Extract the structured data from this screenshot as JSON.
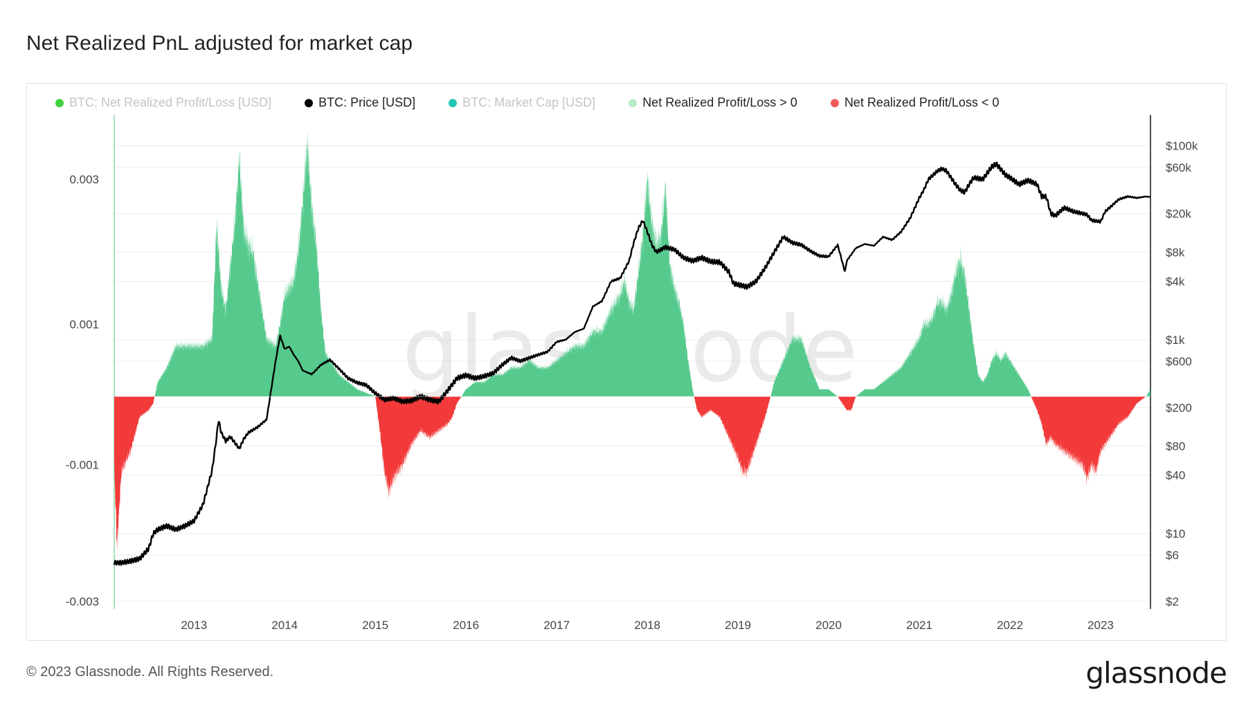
{
  "title": "Net Realized PnL adjusted for market cap",
  "footer": {
    "copyright": "© 2023 Glassnode. All Rights Reserved.",
    "logo": "glassnode"
  },
  "watermark": "glassnode",
  "legend": [
    {
      "label": "BTC: Net Realized Profit/Loss [USD]",
      "color": "#3ecf3e",
      "active": false
    },
    {
      "label": "BTC: Price [USD]",
      "color": "#000000",
      "active": true
    },
    {
      "label": "BTC: Market Cap [USD]",
      "color": "#26c6b5",
      "active": false
    },
    {
      "label": "Net Realized Profit/Loss > 0",
      "color": "#b6ecc9",
      "active": true
    },
    {
      "label": "Net Realized Profit/Loss < 0",
      "color": "#f25b5b",
      "active": true
    }
  ],
  "chart_data": {
    "type": "area+line",
    "title": "Net Realized PnL adjusted for market cap",
    "x_ticks": [
      "2013",
      "2014",
      "2015",
      "2016",
      "2017",
      "2018",
      "2019",
      "2020",
      "2021",
      "2022",
      "2023"
    ],
    "x_range": [
      2012.12,
      2023.55
    ],
    "left_axis": {
      "ticks": [
        "0.003",
        "0.001",
        "-0.001",
        "-0.003"
      ],
      "tick_values": [
        0.003,
        0.001,
        -0.001,
        -0.003
      ],
      "range": [
        -0.003,
        0.004
      ]
    },
    "right_axis": {
      "scale": "log",
      "ticks": [
        "$100k",
        "$60k",
        "$20k",
        "$8k",
        "$4k",
        "$1k",
        "$600",
        "$200",
        "$80",
        "$40",
        "$10",
        "$6",
        "$2"
      ],
      "tick_values": [
        100000,
        60000,
        20000,
        8000,
        4000,
        1000,
        600,
        200,
        80,
        40,
        10,
        6,
        2
      ],
      "range": [
        2,
        150000
      ]
    },
    "colors": {
      "positive": "#4dc787",
      "negative": "#f23a3a",
      "price": "#000000"
    },
    "pnl_series": {
      "name": "Net Realized Profit/Loss (adjusted)",
      "x": [
        2012.12,
        2012.15,
        2012.2,
        2012.3,
        2012.4,
        2012.5,
        2012.55,
        2012.6,
        2012.7,
        2012.8,
        2012.9,
        2013.0,
        2013.1,
        2013.2,
        2013.25,
        2013.3,
        2013.35,
        2013.4,
        2013.45,
        2013.5,
        2013.55,
        2013.6,
        2013.65,
        2013.7,
        2013.8,
        2013.9,
        2013.95,
        2014.0,
        2014.05,
        2014.1,
        2014.15,
        2014.2,
        2014.25,
        2014.3,
        2014.35,
        2014.4,
        2014.45,
        2014.5,
        2014.6,
        2014.7,
        2014.8,
        2014.9,
        2015.0,
        2015.05,
        2015.1,
        2015.15,
        2015.2,
        2015.3,
        2015.4,
        2015.5,
        2015.6,
        2015.7,
        2015.8,
        2015.85,
        2015.9,
        2016.0,
        2016.1,
        2016.2,
        2016.3,
        2016.4,
        2016.5,
        2016.6,
        2016.7,
        2016.8,
        2016.9,
        2017.0,
        2017.1,
        2017.2,
        2017.3,
        2017.4,
        2017.5,
        2017.6,
        2017.7,
        2017.75,
        2017.8,
        2017.85,
        2017.9,
        2017.95,
        2018.0,
        2018.05,
        2018.1,
        2018.15,
        2018.2,
        2018.25,
        2018.3,
        2018.35,
        2018.4,
        2018.45,
        2018.5,
        2018.55,
        2018.6,
        2018.7,
        2018.8,
        2018.9,
        2019.0,
        2019.05,
        2019.1,
        2019.2,
        2019.3,
        2019.4,
        2019.5,
        2019.6,
        2019.7,
        2019.8,
        2019.9,
        2020.0,
        2020.1,
        2020.2,
        2020.25,
        2020.3,
        2020.4,
        2020.5,
        2020.6,
        2020.7,
        2020.8,
        2020.9,
        2021.0,
        2021.05,
        2021.1,
        2021.15,
        2021.2,
        2021.25,
        2021.3,
        2021.35,
        2021.4,
        2021.45,
        2021.5,
        2021.55,
        2021.6,
        2021.65,
        2021.7,
        2021.75,
        2021.8,
        2021.85,
        2021.9,
        2021.95,
        2022.0,
        2022.05,
        2022.1,
        2022.2,
        2022.3,
        2022.35,
        2022.4,
        2022.45,
        2022.5,
        2022.6,
        2022.7,
        2022.8,
        2022.85,
        2022.9,
        2022.95,
        2023.0,
        2023.1,
        2023.2,
        2023.3,
        2023.4,
        2023.5,
        2023.55
      ],
      "y": [
        -0.001,
        -0.0022,
        -0.0011,
        -0.0008,
        -0.0003,
        -0.0002,
        -0.0001,
        0.0002,
        0.0004,
        0.0007,
        0.0007,
        0.0007,
        0.0007,
        0.0008,
        0.0024,
        0.0015,
        0.0012,
        0.0018,
        0.0024,
        0.0033,
        0.0023,
        0.0021,
        0.002,
        0.0016,
        0.0008,
        0.0007,
        0.001,
        0.0014,
        0.0015,
        0.0016,
        0.002,
        0.0027,
        0.0035,
        0.0026,
        0.0021,
        0.0012,
        0.0006,
        0.0005,
        0.0003,
        0.0002,
        0.0001,
        5e-05,
        0.0,
        -0.0005,
        -0.0011,
        -0.0014,
        -0.0012,
        -0.001,
        -0.0007,
        -0.0005,
        -0.0006,
        -0.0005,
        -0.0004,
        -0.0003,
        -0.0001,
        0.0001,
        0.0002,
        0.0002,
        0.0003,
        0.0003,
        0.0004,
        0.0004,
        0.0005,
        0.0004,
        0.0004,
        0.0005,
        0.0006,
        0.0007,
        0.0007,
        0.0009,
        0.0009,
        0.0012,
        0.0014,
        0.0016,
        0.0013,
        0.0012,
        0.0017,
        0.0022,
        0.003,
        0.0024,
        0.0021,
        0.0022,
        0.0029,
        0.0018,
        0.0015,
        0.0013,
        0.001,
        0.0005,
        0.0001,
        -0.0002,
        -0.0003,
        -0.0002,
        -0.0003,
        -0.0006,
        -0.0009,
        -0.0011,
        -0.0011,
        -0.0007,
        -0.0003,
        0.0002,
        0.0005,
        0.0008,
        0.0008,
        0.0004,
        0.0001,
        0.0001,
        0.0,
        -0.0002,
        -0.0002,
        0.0,
        0.0001,
        0.0001,
        0.0002,
        0.0003,
        0.0004,
        0.0006,
        0.0008,
        0.001,
        0.001,
        0.0011,
        0.0013,
        0.0013,
        0.0012,
        0.0014,
        0.0017,
        0.0019,
        0.0017,
        0.0012,
        0.0007,
        0.0003,
        0.0002,
        0.0003,
        0.0005,
        0.0006,
        0.0005,
        0.0006,
        0.0005,
        0.0004,
        0.0003,
        0.0001,
        -0.0002,
        -0.0004,
        -0.0007,
        -0.0006,
        -0.0007,
        -0.0008,
        -0.0009,
        -0.001,
        -0.0012,
        -0.001,
        -0.0011,
        -0.0008,
        -0.0006,
        -0.0004,
        -0.0003,
        -0.0001,
        0.0,
        0.0001
      ]
    },
    "price_series": {
      "name": "BTC: Price [USD]",
      "x": [
        2012.12,
        2012.2,
        2012.3,
        2012.4,
        2012.5,
        2012.55,
        2012.6,
        2012.7,
        2012.8,
        2012.9,
        2013.0,
        2013.1,
        2013.2,
        2013.25,
        2013.27,
        2013.3,
        2013.35,
        2013.4,
        2013.5,
        2013.55,
        2013.6,
        2013.7,
        2013.8,
        2013.85,
        2013.9,
        2013.95,
        2014.0,
        2014.05,
        2014.1,
        2014.15,
        2014.2,
        2014.3,
        2014.4,
        2014.5,
        2014.6,
        2014.7,
        2014.8,
        2014.9,
        2015.0,
        2015.1,
        2015.2,
        2015.3,
        2015.4,
        2015.5,
        2015.6,
        2015.7,
        2015.8,
        2015.9,
        2016.0,
        2016.1,
        2016.2,
        2016.3,
        2016.4,
        2016.5,
        2016.6,
        2016.7,
        2016.8,
        2016.9,
        2017.0,
        2017.1,
        2017.2,
        2017.3,
        2017.4,
        2017.5,
        2017.6,
        2017.7,
        2017.8,
        2017.85,
        2017.9,
        2017.95,
        2018.0,
        2018.05,
        2018.1,
        2018.2,
        2018.3,
        2018.4,
        2018.5,
        2018.6,
        2018.7,
        2018.8,
        2018.9,
        2018.95,
        2019.0,
        2019.1,
        2019.2,
        2019.3,
        2019.4,
        2019.5,
        2019.6,
        2019.7,
        2019.8,
        2019.9,
        2020.0,
        2020.1,
        2020.18,
        2020.2,
        2020.3,
        2020.4,
        2020.5,
        2020.6,
        2020.7,
        2020.8,
        2020.9,
        2021.0,
        2021.05,
        2021.1,
        2021.2,
        2021.25,
        2021.3,
        2021.4,
        2021.45,
        2021.5,
        2021.55,
        2021.6,
        2021.7,
        2021.8,
        2021.85,
        2021.9,
        2021.95,
        2022.0,
        2022.1,
        2022.2,
        2022.3,
        2022.35,
        2022.4,
        2022.45,
        2022.5,
        2022.6,
        2022.7,
        2022.8,
        2022.85,
        2022.9,
        2023.0,
        2023.05,
        2023.1,
        2023.2,
        2023.3,
        2023.4,
        2023.5,
        2023.55
      ],
      "y": [
        5,
        5,
        5.2,
        5.5,
        7,
        10,
        11,
        12,
        11,
        12,
        13.5,
        20,
        45,
        100,
        150,
        110,
        90,
        100,
        75,
        95,
        110,
        125,
        150,
        300,
        600,
        1100,
        800,
        850,
        700,
        600,
        480,
        440,
        550,
        620,
        500,
        400,
        360,
        340,
        280,
        240,
        250,
        230,
        235,
        260,
        240,
        230,
        300,
        400,
        430,
        400,
        420,
        450,
        550,
        650,
        600,
        650,
        700,
        750,
        950,
        1000,
        1200,
        1300,
        2200,
        2500,
        4000,
        4300,
        6500,
        10000,
        14000,
        17000,
        13000,
        9500,
        8000,
        9000,
        8500,
        7000,
        6500,
        7000,
        6400,
        6300,
        5000,
        3800,
        3700,
        3500,
        4000,
        5500,
        8000,
        11500,
        10000,
        9500,
        8200,
        7300,
        7200,
        9500,
        5000,
        6500,
        8800,
        9700,
        9300,
        11500,
        10700,
        13000,
        18000,
        29000,
        35000,
        45000,
        55000,
        58000,
        55000,
        40000,
        35000,
        33000,
        40000,
        47000,
        45000,
        61000,
        65000,
        57000,
        50000,
        47000,
        40000,
        44000,
        40000,
        30000,
        30000,
        20000,
        19000,
        23000,
        21000,
        20000,
        19500,
        17000,
        16500,
        21000,
        23000,
        28000,
        30000,
        29000,
        30000,
        29500
      ]
    }
  }
}
